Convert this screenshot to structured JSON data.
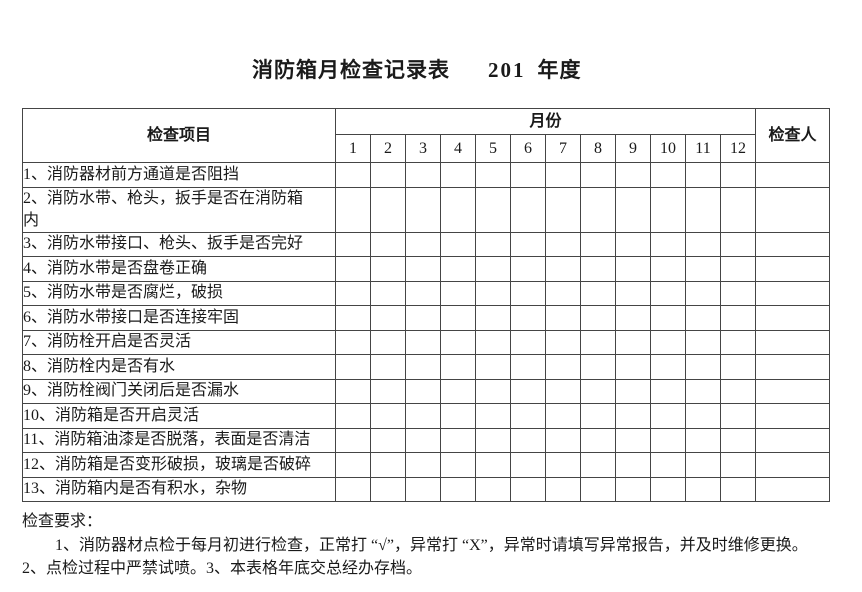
{
  "title": {
    "text": "消防箱月检查记录表",
    "year": "201",
    "year_suffix": "年度"
  },
  "table": {
    "header": {
      "items": "检查项目",
      "month_group": "月份",
      "months": [
        "1",
        "2",
        "3",
        "4",
        "5",
        "6",
        "7",
        "8",
        "9",
        "10",
        "11",
        "12"
      ],
      "inspector": "检查人"
    },
    "rows": [
      {
        "label": "1、消防器材前方通道是否阻挡"
      },
      {
        "label": "2、消防水带、枪头，扳手是否在消防箱\n内"
      },
      {
        "label": "3、消防水带接口、枪头、扳手是否完好"
      },
      {
        "label": "4、消防水带是否盘卷正确"
      },
      {
        "label": "5、消防水带是否腐烂，破损"
      },
      {
        "label": "6、消防水带接口是否连接牢固"
      },
      {
        "label": "7、消防栓开启是否灵活"
      },
      {
        "label": "8、消防栓内是否有水"
      },
      {
        "label": "9、消防栓阀门关闭后是否漏水"
      },
      {
        "label": "10、消防箱是否开启灵活"
      },
      {
        "label": "11、消防箱油漆是否脱落，表面是否清洁"
      },
      {
        "label": "12、消防箱是否变形破损，玻璃是否破碎"
      },
      {
        "label": "13、消防箱内是否有积水，杂物"
      }
    ]
  },
  "notes": {
    "heading": "检查要求：",
    "line1": "1、消防器材点检于每月初进行检查，正常打 “√”，异常打 “X”，异常时请填写异常报告，并及时维修更换。",
    "line2": "2、点检过程中严禁试喷。3、本表格年底交总经办存档。"
  }
}
